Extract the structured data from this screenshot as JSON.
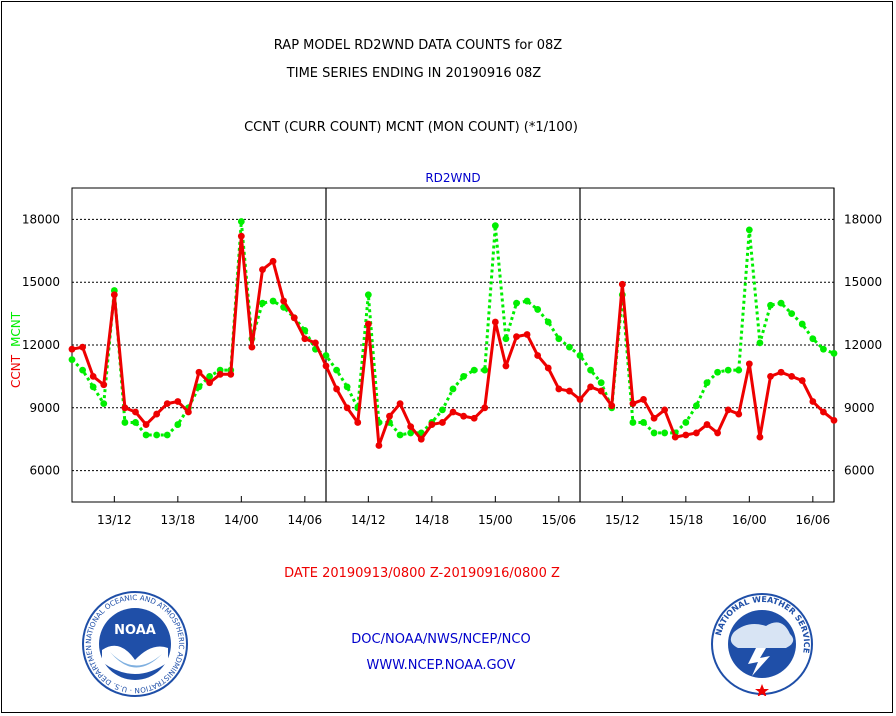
{
  "header": {
    "title_line1": "RAP MODEL RD2WND DATA COUNTS for 08Z",
    "title_line2": "TIME SERIES ENDING IN 20190916 08Z",
    "subtitle": "CCNT (CURR COUNT)  MCNT (MON COUNT)  (*1/100)"
  },
  "footer": {
    "date_range": "DATE 20190913/0800 Z-20190916/0800 Z",
    "org": "DOC/NOAA/NWS/NCEP/NCO",
    "url": "WWW.NCEP.NOAA.GOV"
  },
  "logos": {
    "noaa_text": "NOAA",
    "noaa_ring": "NATIONAL OCEANIC AND ATMOSPHERIC ADMINISTRATION · U.S. DEPARTMENT OF COMMERCE",
    "nws_ring": "NATIONAL WEATHER SERVICE"
  },
  "colors": {
    "ccnt": "#ee0000",
    "mcnt": "#00ee00",
    "label_blue": "#0000cc",
    "noaa_blue": "#1f4fa8"
  },
  "chart_data": {
    "type": "line",
    "title": "RD2WND",
    "ylabel_series": [
      "CCNT",
      "MCNT"
    ],
    "ylim": [
      4500,
      19500
    ],
    "xlim": [
      8,
      80
    ],
    "yticks": [
      6000,
      9000,
      12000,
      15000,
      18000
    ],
    "ytick_labels": [
      "6000",
      "9000",
      "12000",
      "15000",
      "18000"
    ],
    "xticks": [
      12,
      18,
      24,
      30,
      36,
      42,
      48,
      54,
      60,
      66,
      72,
      78
    ],
    "xtick_labels": [
      "13/12",
      "13/18",
      "14/00",
      "14/06",
      "14/12",
      "14/18",
      "15/00",
      "15/06",
      "15/12",
      "15/18",
      "16/00",
      "16/06"
    ],
    "day_dividers": [
      32,
      56,
      80
    ],
    "grid": true,
    "x": [
      8,
      9,
      10,
      11,
      12,
      13,
      14,
      15,
      16,
      17,
      18,
      19,
      20,
      21,
      22,
      23,
      24,
      25,
      26,
      27,
      28,
      29,
      30,
      31,
      32,
      33,
      34,
      35,
      36,
      37,
      38,
      39,
      40,
      41,
      42,
      43,
      44,
      45,
      46,
      47,
      48,
      49,
      50,
      51,
      52,
      53,
      54,
      55,
      56,
      57,
      58,
      59,
      60,
      61,
      62,
      63,
      64,
      65,
      66,
      67,
      68,
      69,
      70,
      71,
      72,
      73,
      74,
      75,
      76,
      77,
      78,
      79,
      80
    ],
    "series": [
      {
        "name": "CCNT",
        "values": [
          11800,
          11900,
          10500,
          10100,
          14400,
          9000,
          8800,
          8200,
          8700,
          9200,
          9300,
          8800,
          10700,
          10200,
          10600,
          10600,
          17200,
          11900,
          15600,
          16000,
          14100,
          13300,
          12300,
          12100,
          11000,
          9900,
          9000,
          8300,
          13000,
          7200,
          8600,
          9200,
          8100,
          7500,
          8200,
          8300,
          8800,
          8600,
          8500,
          9000,
          13100,
          11000,
          12400,
          12500,
          11500,
          10900,
          9900,
          9800,
          9400,
          10000,
          9800,
          9100,
          14900,
          9200,
          9400,
          8500,
          8900,
          7600,
          7700,
          7800,
          8200,
          7800,
          8900,
          8700,
          11100,
          7600,
          10500,
          10700,
          10500,
          10300,
          9300,
          8800,
          8400
        ]
      },
      {
        "name": "MCNT",
        "values": [
          11300,
          10800,
          10000,
          9200,
          14600,
          8300,
          8300,
          7700,
          7700,
          7700,
          8200,
          9000,
          10000,
          10500,
          10800,
          10800,
          17900,
          12300,
          14000,
          14100,
          13800,
          13300,
          12700,
          11800,
          11500,
          10800,
          10000,
          9000,
          14400,
          8300,
          8300,
          7700,
          7800,
          7800,
          8300,
          8900,
          9900,
          10500,
          10800,
          10800,
          17700,
          12300,
          14000,
          14100,
          13700,
          13100,
          12300,
          11900,
          11500,
          10800,
          10200,
          9000,
          14400,
          8300,
          8300,
          7800,
          7800,
          7800,
          8300,
          9100,
          10200,
          10700,
          10800,
          10800,
          17500,
          12100,
          13900,
          14000,
          13500,
          13000,
          12300,
          11800,
          11600
        ]
      }
    ]
  }
}
